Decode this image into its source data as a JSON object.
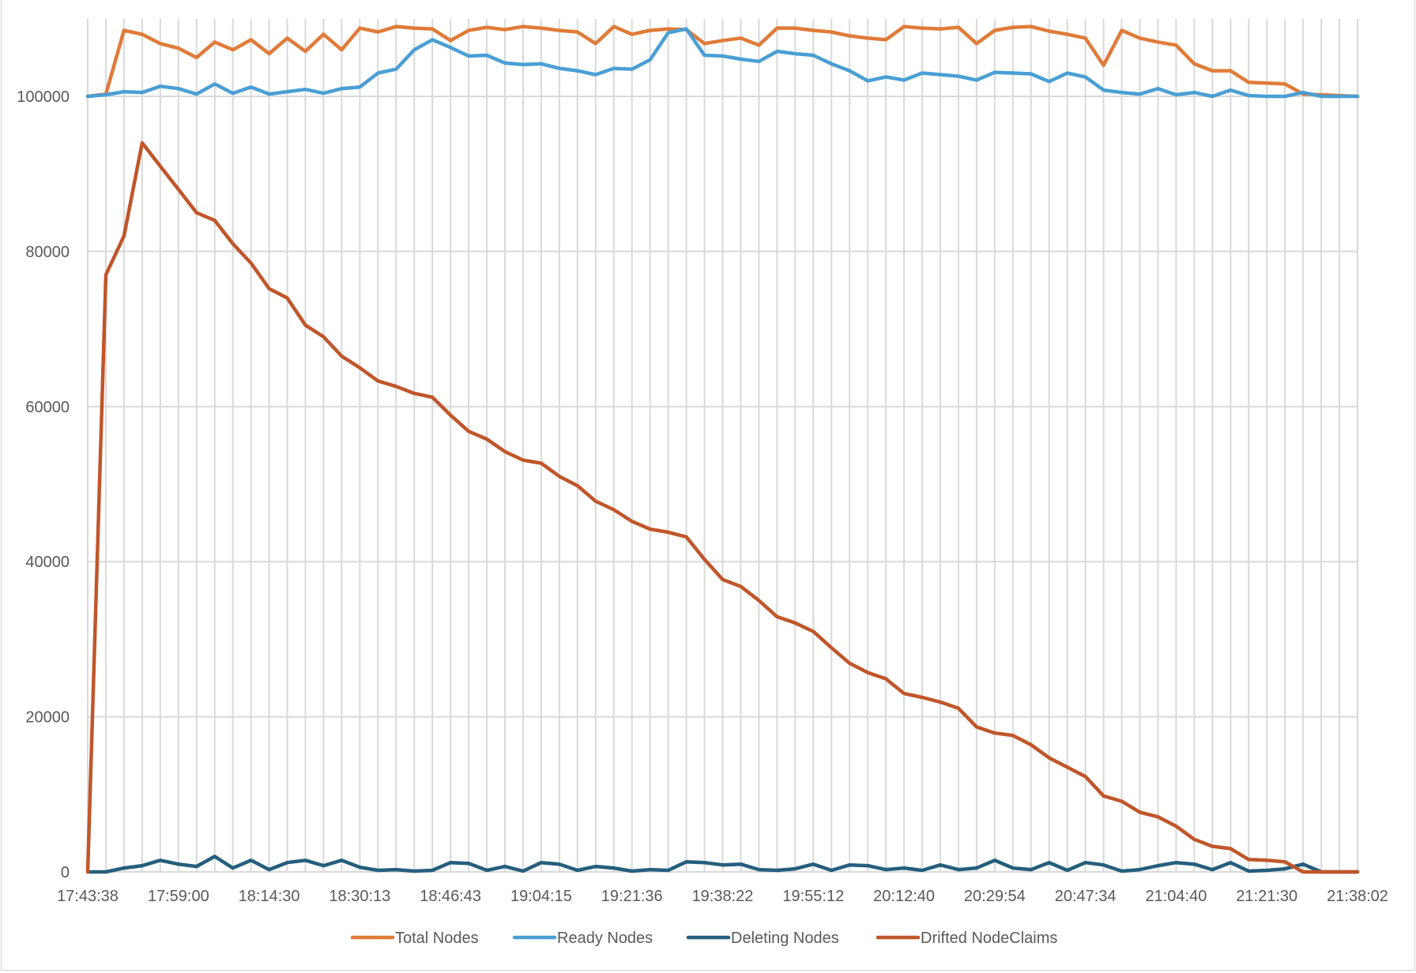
{
  "chart_data": {
    "type": "line",
    "title": "",
    "xlabel": "",
    "ylabel": "",
    "ylim": [
      0,
      110000
    ],
    "y_ticks": [
      0,
      20000,
      40000,
      60000,
      80000,
      100000
    ],
    "x_tick_labels": [
      "17:43:38",
      "17:59:00",
      "18:14:30",
      "18:30:13",
      "18:46:43",
      "19:04:15",
      "19:21:36",
      "19:38:22",
      "19:55:12",
      "20:12:40",
      "20:29:54",
      "20:47:34",
      "21:04:40",
      "21:21:30",
      "21:38:02"
    ],
    "x_tick_every_n_samples": 5,
    "grid": {
      "horizontal": true,
      "vertical": true
    },
    "legend_position": "bottom",
    "series": [
      {
        "name": "Total Nodes",
        "color": "#E07B39",
        "values": [
          100000,
          100300,
          108500,
          108000,
          106800,
          106200,
          105000,
          107000,
          106000,
          107300,
          105500,
          107500,
          105800,
          108000,
          106000,
          108800,
          108300,
          109000,
          108800,
          108700,
          107200,
          108500,
          108900,
          108600,
          109000,
          108800,
          108500,
          108300,
          106800,
          109000,
          108000,
          108500,
          108700,
          108600,
          106800,
          107200,
          107500,
          106600,
          108800,
          108800,
          108500,
          108300,
          107800,
          107500,
          107300,
          109000,
          108800,
          108700,
          108900,
          106800,
          108500,
          108900,
          109000,
          108400,
          108000,
          107500,
          104000,
          108500,
          107500,
          107000,
          106600,
          104200,
          103300,
          103300,
          101800,
          101700,
          101600,
          100300,
          100200,
          100100,
          100000
        ]
      },
      {
        "name": "Ready Nodes",
        "color": "#4A9FD4",
        "values": [
          100000,
          100200,
          100600,
          100500,
          101300,
          101000,
          100300,
          101600,
          100400,
          101200,
          100300,
          100600,
          100900,
          100400,
          101000,
          101200,
          103000,
          103500,
          106000,
          107300,
          106300,
          105200,
          105300,
          104300,
          104100,
          104200,
          103600,
          103300,
          102800,
          103600,
          103500,
          104700,
          108200,
          108700,
          105300,
          105200,
          104800,
          104500,
          105800,
          105500,
          105300,
          104200,
          103300,
          102000,
          102500,
          102100,
          103000,
          102800,
          102600,
          102100,
          103100,
          103000,
          102900,
          101900,
          103000,
          102500,
          100800,
          100500,
          100300,
          101000,
          100200,
          100500,
          100000,
          100800,
          100100,
          100000,
          100000,
          100500,
          100000,
          100000,
          100000
        ]
      },
      {
        "name": "Deleting Nodes",
        "color": "#255E7E",
        "values": [
          0,
          0,
          500,
          800,
          1500,
          1000,
          700,
          2000,
          500,
          1500,
          300,
          1200,
          1500,
          800,
          1500,
          600,
          200,
          300,
          100,
          200,
          1200,
          1100,
          200,
          700,
          100,
          1200,
          1000,
          200,
          700,
          500,
          100,
          300,
          200,
          1300,
          1200,
          900,
          1000,
          300,
          200,
          400,
          1000,
          200,
          900,
          800,
          300,
          500,
          200,
          900,
          300,
          500,
          1500,
          500,
          300,
          1200,
          200,
          1200,
          900,
          100,
          300,
          800,
          1200,
          1000,
          300,
          1200,
          100,
          200,
          400,
          1000,
          0,
          0,
          0
        ]
      },
      {
        "name": "Drifted NodeClaims",
        "color": "#C0562A",
        "values": [
          0,
          77000,
          82000,
          94000,
          91000,
          88000,
          85000,
          84000,
          81000,
          78500,
          75200,
          74000,
          70500,
          69000,
          66500,
          65000,
          63300,
          62600,
          61700,
          61200,
          58900,
          56800,
          55800,
          54200,
          53100,
          52700,
          51000,
          49800,
          47800,
          46700,
          45200,
          44200,
          43800,
          43200,
          40300,
          37700,
          36800,
          35000,
          32900,
          32100,
          31000,
          28900,
          26900,
          25700,
          24900,
          23000,
          22500,
          21900,
          21100,
          18700,
          17900,
          17600,
          16400,
          14700,
          13500,
          12300,
          9800,
          9100,
          7700,
          7100,
          5900,
          4200,
          3300,
          3000,
          1600,
          1500,
          1300,
          0,
          0,
          0,
          0
        ]
      }
    ]
  }
}
